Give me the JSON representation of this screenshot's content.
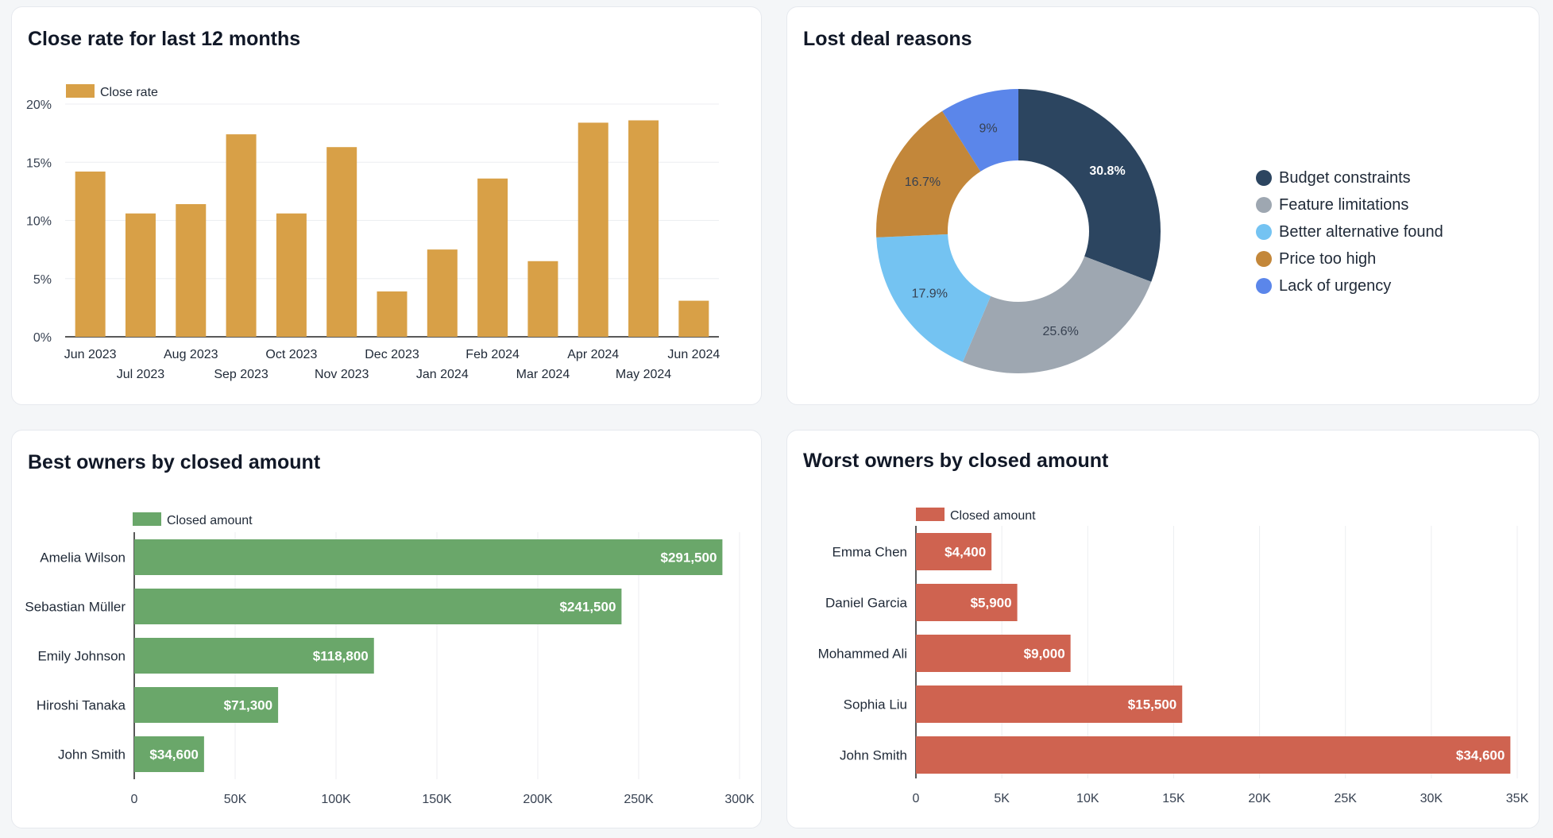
{
  "colors": {
    "close_rate": "#d8a047",
    "best": "#6aa76a",
    "worst": "#cf6350",
    "donut": [
      "#2c4560",
      "#9ea7b1",
      "#74c3f2",
      "#c3873a",
      "#5b86ea"
    ]
  },
  "close_rate": {
    "title": "Close rate for last 12 months",
    "chart_data": {
      "type": "bar",
      "title": "Close rate for last 12 months",
      "legend": "Close rate",
      "categories": [
        "Jun 2023",
        "Jul 2023",
        "Aug 2023",
        "Sep 2023",
        "Oct 2023",
        "Nov 2023",
        "Dec 2023",
        "Jan 2024",
        "Feb 2024",
        "Mar 2024",
        "Apr 2024",
        "May 2024",
        "Jun 2024"
      ],
      "values": [
        14.2,
        10.6,
        11.4,
        17.4,
        10.6,
        16.3,
        3.9,
        7.5,
        13.6,
        6.5,
        18.4,
        18.6,
        3.1
      ],
      "ylim": [
        0,
        20
      ],
      "yticks": [
        "0%",
        "5%",
        "10%",
        "15%",
        "20%"
      ]
    }
  },
  "lost_reasons": {
    "title": "Lost deal reasons",
    "chart_data": {
      "type": "pie",
      "labels": [
        "Budget constraints",
        "Feature limitations",
        "Better alternative found",
        "Price too high",
        "Lack of urgency"
      ],
      "values": [
        30.8,
        25.6,
        17.9,
        16.7,
        9
      ],
      "value_labels": [
        "30.8%",
        "25.6%",
        "17.9%",
        "16.7%",
        "9%"
      ]
    }
  },
  "best_owners": {
    "title": "Best owners by closed amount",
    "chart_data": {
      "type": "bar",
      "orientation": "horizontal",
      "legend": "Closed amount",
      "categories": [
        "Amelia Wilson",
        "Sebastian Müller",
        "Emily Johnson",
        "Hiroshi Tanaka",
        "John Smith"
      ],
      "values": [
        291500,
        241500,
        118800,
        71300,
        34600
      ],
      "value_labels": [
        "$291,500",
        "$241,500",
        "$118,800",
        "$71,300",
        "$34,600"
      ],
      "xlim": [
        0,
        300000
      ],
      "xticks": [
        "0",
        "50K",
        "100K",
        "150K",
        "200K",
        "250K",
        "300K"
      ]
    }
  },
  "worst_owners": {
    "title": "Worst owners by closed amount",
    "chart_data": {
      "type": "bar",
      "orientation": "horizontal",
      "legend": "Closed amount",
      "categories": [
        "Emma Chen",
        "Daniel Garcia",
        "Mohammed Ali",
        "Sophia Liu",
        "John Smith"
      ],
      "values": [
        4400,
        5900,
        9000,
        15500,
        34600
      ],
      "value_labels": [
        "$4,400",
        "$5,900",
        "$9,000",
        "$15,500",
        "$34,600"
      ],
      "xlim": [
        0,
        35000
      ],
      "xticks": [
        "0",
        "5K",
        "10K",
        "15K",
        "20K",
        "25K",
        "30K",
        "35K"
      ]
    }
  }
}
